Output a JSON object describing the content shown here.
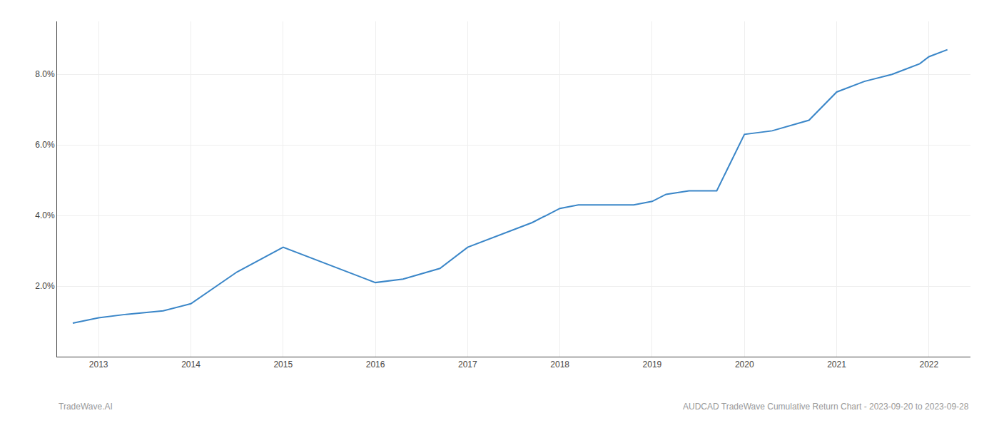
{
  "chart_data": {
    "type": "line",
    "x": [
      2012.72,
      2013.0,
      2013.3,
      2013.7,
      2014.0,
      2014.5,
      2015.0,
      2015.5,
      2016.0,
      2016.3,
      2016.7,
      2017.0,
      2017.3,
      2017.7,
      2018.0,
      2018.2,
      2018.5,
      2018.8,
      2019.0,
      2019.15,
      2019.4,
      2019.7,
      2020.0,
      2020.3,
      2020.7,
      2021.0,
      2021.3,
      2021.6,
      2021.9,
      2022.0,
      2022.2
    ],
    "values": [
      0.0095,
      0.011,
      0.012,
      0.013,
      0.015,
      0.024,
      0.031,
      0.026,
      0.021,
      0.022,
      0.025,
      0.031,
      0.034,
      0.038,
      0.042,
      0.043,
      0.043,
      0.043,
      0.044,
      0.046,
      0.047,
      0.047,
      0.063,
      0.064,
      0.067,
      0.075,
      0.078,
      0.08,
      0.083,
      0.085,
      0.087
    ],
    "color": "#3a86c8",
    "xlim": [
      2012.55,
      2022.45
    ],
    "xticks": [
      2013,
      2014,
      2015,
      2016,
      2017,
      2018,
      2019,
      2020,
      2021,
      2022
    ],
    "ylim": [
      0.0,
      0.095
    ],
    "yticks": [
      {
        "value": 0.02,
        "label": "2.0%"
      },
      {
        "value": 0.04,
        "label": "4.0%"
      },
      {
        "value": 0.06,
        "label": "6.0%"
      },
      {
        "value": 0.08,
        "label": "8.0%"
      }
    ],
    "grid": true,
    "annotations": [
      "TradeWave.AI",
      "AUDCAD TradeWave Cumulative Return Chart - 2023-09-20 to 2023-09-28"
    ]
  }
}
